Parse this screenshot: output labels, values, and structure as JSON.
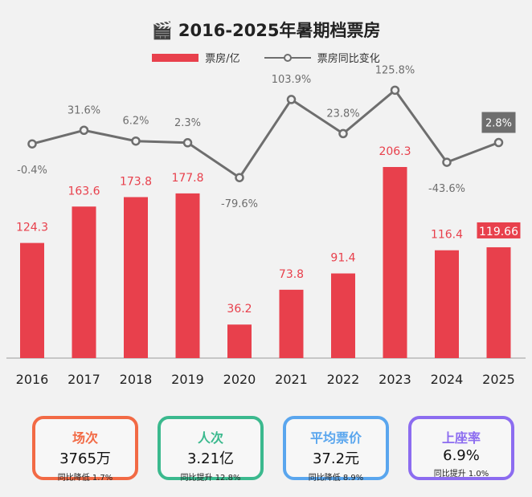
{
  "chart_data": {
    "type": "bar",
    "title": "2016-2025年暑期档票房",
    "title_icon": "clapperboard-icon",
    "categories": [
      "2016",
      "2017",
      "2018",
      "2019",
      "2020",
      "2021",
      "2022",
      "2023",
      "2024",
      "2025"
    ],
    "series": [
      {
        "name": "票房/亿",
        "type": "bar",
        "color": "#e8404c",
        "values": [
          124.3,
          163.6,
          173.8,
          177.8,
          36.2,
          73.8,
          91.4,
          206.3,
          116.4,
          119.66
        ],
        "labels": [
          "124.3",
          "163.6",
          "173.8",
          "177.8",
          "36.2",
          "73.8",
          "91.4",
          "206.3",
          "116.4",
          "119.66"
        ]
      },
      {
        "name": "票房同比变化",
        "type": "line",
        "color": "#6e6e6e",
        "values": [
          -0.4,
          31.6,
          6.2,
          2.3,
          -79.6,
          103.9,
          23.8,
          125.8,
          -43.6,
          2.8
        ],
        "labels": [
          "-0.4%",
          "31.6%",
          "6.2%",
          "2.3%",
          "-79.6%",
          "103.9%",
          "23.8%",
          "125.8%",
          "-43.6%",
          "2.8%"
        ]
      }
    ],
    "legend": "top-center"
  },
  "cards": [
    {
      "title": "场次",
      "value": "3765万",
      "sub": "同比降低 1.7%",
      "color": "#f26a45"
    },
    {
      "title": "人次",
      "value": "3.21亿",
      "sub": "同比提升 12.8%",
      "color": "#3bb98e"
    },
    {
      "title": "平均票价",
      "value": "37.2元",
      "sub": "同比降低 8.9%",
      "color": "#5aa6ee"
    },
    {
      "title": "上座率",
      "value": "6.9%",
      "sub": "同比提升 1.0%",
      "color": "#8c6cf0"
    }
  ]
}
